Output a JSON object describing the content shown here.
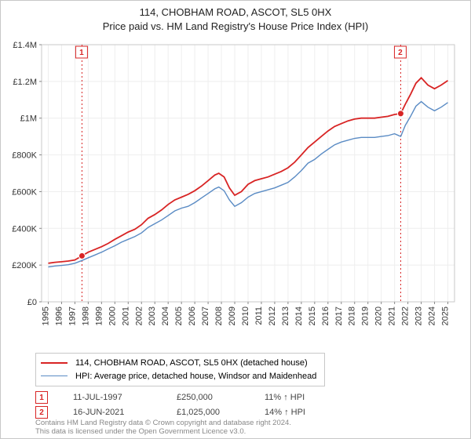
{
  "title": {
    "line1": "114, CHOBHAM ROAD, ASCOT, SL5 0HX",
    "line2": "Price paid vs. HM Land Registry's House Price Index (HPI)"
  },
  "chart": {
    "type": "line",
    "plot_bg": "#ffffff",
    "outer_bg": "#ffffff",
    "border_color": "#c8c8c8",
    "grid_color": "#eeeeee",
    "axis_color": "#888888",
    "tick_color": "#888888",
    "tick_font_size": 11,
    "x_years": [
      1995,
      1996,
      1997,
      1998,
      1999,
      2000,
      2001,
      2002,
      2003,
      2004,
      2005,
      2006,
      2007,
      2008,
      2009,
      2010,
      2011,
      2012,
      2013,
      2014,
      2015,
      2016,
      2017,
      2018,
      2019,
      2020,
      2021,
      2022,
      2023,
      2024,
      2025
    ],
    "xlim": [
      1994.5,
      2025.5
    ],
    "ylim": [
      0,
      1400000
    ],
    "ytick_step": 200000,
    "yticks": [
      "£0",
      "£200K",
      "£400K",
      "£600K",
      "£800K",
      "£1M",
      "£1.2M",
      "£1.4M"
    ],
    "series": [
      {
        "name": "price_paid",
        "color": "#d82424",
        "line_width": 1.8,
        "points": [
          [
            1995.0,
            210000
          ],
          [
            1995.5,
            215000
          ],
          [
            1996.0,
            218000
          ],
          [
            1996.5,
            222000
          ],
          [
            1997.0,
            228000
          ],
          [
            1997.53,
            250000
          ],
          [
            1998.0,
            270000
          ],
          [
            1998.5,
            285000
          ],
          [
            1999.0,
            300000
          ],
          [
            1999.5,
            318000
          ],
          [
            2000.0,
            340000
          ],
          [
            2000.5,
            360000
          ],
          [
            2001.0,
            380000
          ],
          [
            2001.5,
            395000
          ],
          [
            2002.0,
            420000
          ],
          [
            2002.5,
            455000
          ],
          [
            2003.0,
            475000
          ],
          [
            2003.5,
            500000
          ],
          [
            2004.0,
            530000
          ],
          [
            2004.5,
            555000
          ],
          [
            2005.0,
            570000
          ],
          [
            2005.5,
            585000
          ],
          [
            2006.0,
            605000
          ],
          [
            2006.5,
            630000
          ],
          [
            2007.0,
            660000
          ],
          [
            2007.5,
            690000
          ],
          [
            2007.8,
            700000
          ],
          [
            2008.2,
            680000
          ],
          [
            2008.6,
            620000
          ],
          [
            2009.0,
            580000
          ],
          [
            2009.5,
            600000
          ],
          [
            2010.0,
            640000
          ],
          [
            2010.5,
            660000
          ],
          [
            2011.0,
            670000
          ],
          [
            2011.5,
            680000
          ],
          [
            2012.0,
            695000
          ],
          [
            2012.5,
            710000
          ],
          [
            2013.0,
            730000
          ],
          [
            2013.5,
            760000
          ],
          [
            2014.0,
            800000
          ],
          [
            2014.5,
            840000
          ],
          [
            2015.0,
            870000
          ],
          [
            2015.5,
            900000
          ],
          [
            2016.0,
            930000
          ],
          [
            2016.5,
            955000
          ],
          [
            2017.0,
            970000
          ],
          [
            2017.5,
            985000
          ],
          [
            2018.0,
            995000
          ],
          [
            2018.5,
            1000000
          ],
          [
            2019.0,
            1000000
          ],
          [
            2019.5,
            1000000
          ],
          [
            2020.0,
            1005000
          ],
          [
            2020.5,
            1010000
          ],
          [
            2021.0,
            1020000
          ],
          [
            2021.46,
            1025000
          ],
          [
            2021.8,
            1075000
          ],
          [
            2022.2,
            1130000
          ],
          [
            2022.6,
            1190000
          ],
          [
            2023.0,
            1220000
          ],
          [
            2023.5,
            1180000
          ],
          [
            2024.0,
            1160000
          ],
          [
            2024.5,
            1180000
          ],
          [
            2025.0,
            1205000
          ]
        ]
      },
      {
        "name": "hpi",
        "color": "#5a8bc4",
        "line_width": 1.4,
        "points": [
          [
            1995.0,
            190000
          ],
          [
            1995.5,
            195000
          ],
          [
            1996.0,
            198000
          ],
          [
            1996.5,
            202000
          ],
          [
            1997.0,
            210000
          ],
          [
            1997.53,
            225000
          ],
          [
            1998.0,
            240000
          ],
          [
            1998.5,
            255000
          ],
          [
            1999.0,
            270000
          ],
          [
            1999.5,
            288000
          ],
          [
            2000.0,
            305000
          ],
          [
            2000.5,
            325000
          ],
          [
            2001.0,
            340000
          ],
          [
            2001.5,
            355000
          ],
          [
            2002.0,
            375000
          ],
          [
            2002.5,
            405000
          ],
          [
            2003.0,
            425000
          ],
          [
            2003.5,
            445000
          ],
          [
            2004.0,
            470000
          ],
          [
            2004.5,
            495000
          ],
          [
            2005.0,
            510000
          ],
          [
            2005.5,
            520000
          ],
          [
            2006.0,
            540000
          ],
          [
            2006.5,
            565000
          ],
          [
            2007.0,
            590000
          ],
          [
            2007.5,
            615000
          ],
          [
            2007.8,
            625000
          ],
          [
            2008.2,
            605000
          ],
          [
            2008.6,
            555000
          ],
          [
            2009.0,
            520000
          ],
          [
            2009.5,
            540000
          ],
          [
            2010.0,
            570000
          ],
          [
            2010.5,
            590000
          ],
          [
            2011.0,
            600000
          ],
          [
            2011.5,
            610000
          ],
          [
            2012.0,
            620000
          ],
          [
            2012.5,
            635000
          ],
          [
            2013.0,
            650000
          ],
          [
            2013.5,
            680000
          ],
          [
            2014.0,
            715000
          ],
          [
            2014.5,
            755000
          ],
          [
            2015.0,
            775000
          ],
          [
            2015.5,
            805000
          ],
          [
            2016.0,
            830000
          ],
          [
            2016.5,
            855000
          ],
          [
            2017.0,
            870000
          ],
          [
            2017.5,
            880000
          ],
          [
            2018.0,
            890000
          ],
          [
            2018.5,
            895000
          ],
          [
            2019.0,
            895000
          ],
          [
            2019.5,
            895000
          ],
          [
            2020.0,
            900000
          ],
          [
            2020.5,
            905000
          ],
          [
            2021.0,
            915000
          ],
          [
            2021.46,
            900000
          ],
          [
            2021.8,
            960000
          ],
          [
            2022.2,
            1010000
          ],
          [
            2022.6,
            1065000
          ],
          [
            2023.0,
            1090000
          ],
          [
            2023.5,
            1060000
          ],
          [
            2024.0,
            1040000
          ],
          [
            2024.5,
            1060000
          ],
          [
            2025.0,
            1085000
          ]
        ]
      }
    ],
    "markers": [
      {
        "n": "1",
        "x": 1997.53,
        "y": 250000,
        "dot_color": "#d82424",
        "vline_color": "#d82424",
        "box_border": "#d82424",
        "box_text": "#d82424"
      },
      {
        "n": "2",
        "x": 2021.46,
        "y": 1025000,
        "dot_color": "#d82424",
        "vline_color": "#d82424",
        "box_border": "#d82424",
        "box_text": "#d82424"
      }
    ]
  },
  "legend": {
    "items": [
      {
        "color": "#d82424",
        "width": 2,
        "label": "114, CHOBHAM ROAD, ASCOT, SL5 0HX (detached house)"
      },
      {
        "color": "#5a8bc4",
        "width": 1.4,
        "label": "HPI: Average price, detached house, Windsor and Maidenhead"
      }
    ]
  },
  "sales": [
    {
      "n": "1",
      "color": "#d82424",
      "date": "11-JUL-1997",
      "price": "£250,000",
      "pct": "11% ↑ HPI"
    },
    {
      "n": "2",
      "color": "#d82424",
      "date": "16-JUN-2021",
      "price": "£1,025,000",
      "pct": "14% ↑ HPI"
    }
  ],
  "footer": {
    "line1": "Contains HM Land Registry data © Crown copyright and database right 2024.",
    "line2": "This data is licensed under the Open Government Licence v3.0."
  }
}
